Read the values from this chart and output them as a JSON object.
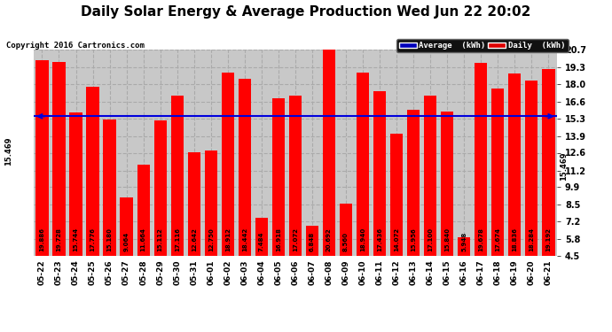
{
  "title": "Daily Solar Energy & Average Production Wed Jun 22 20:02",
  "copyright": "Copyright 2016 Cartronics.com",
  "average": 15.469,
  "bar_color": "#ff0000",
  "avg_line_color": "#0000dd",
  "background_color": "#c8c8c8",
  "plot_bg_color": "#c8c8c8",
  "grid_color": "#aaaaaa",
  "categories": [
    "05-22",
    "05-23",
    "05-24",
    "05-25",
    "05-26",
    "05-27",
    "05-28",
    "05-29",
    "05-30",
    "05-31",
    "06-01",
    "06-02",
    "06-03",
    "06-04",
    "06-05",
    "06-06",
    "06-07",
    "06-08",
    "06-09",
    "06-10",
    "06-11",
    "06-12",
    "06-13",
    "06-14",
    "06-15",
    "06-16",
    "06-17",
    "06-18",
    "06-19",
    "06-20",
    "06-21"
  ],
  "values": [
    19.886,
    19.728,
    15.744,
    17.776,
    15.18,
    9.064,
    11.664,
    15.112,
    17.116,
    12.642,
    12.75,
    18.912,
    18.442,
    7.484,
    16.918,
    17.072,
    6.848,
    20.692,
    8.56,
    18.94,
    17.436,
    14.072,
    15.956,
    17.1,
    15.84,
    5.948,
    19.678,
    17.674,
    18.836,
    18.284,
    19.192
  ],
  "yticks": [
    4.5,
    5.8,
    7.2,
    8.5,
    9.9,
    11.2,
    12.6,
    13.9,
    15.3,
    16.6,
    18.0,
    19.3,
    20.7
  ],
  "ylim": [
    4.5,
    20.7
  ],
  "legend_avg_color": "#0000bb",
  "legend_daily_color": "#dd0000",
  "title_fontsize": 11,
  "copyright_fontsize": 6.5,
  "tick_label_fontsize": 7,
  "bar_label_fontsize": 5,
  "avg_label_fontsize": 6
}
